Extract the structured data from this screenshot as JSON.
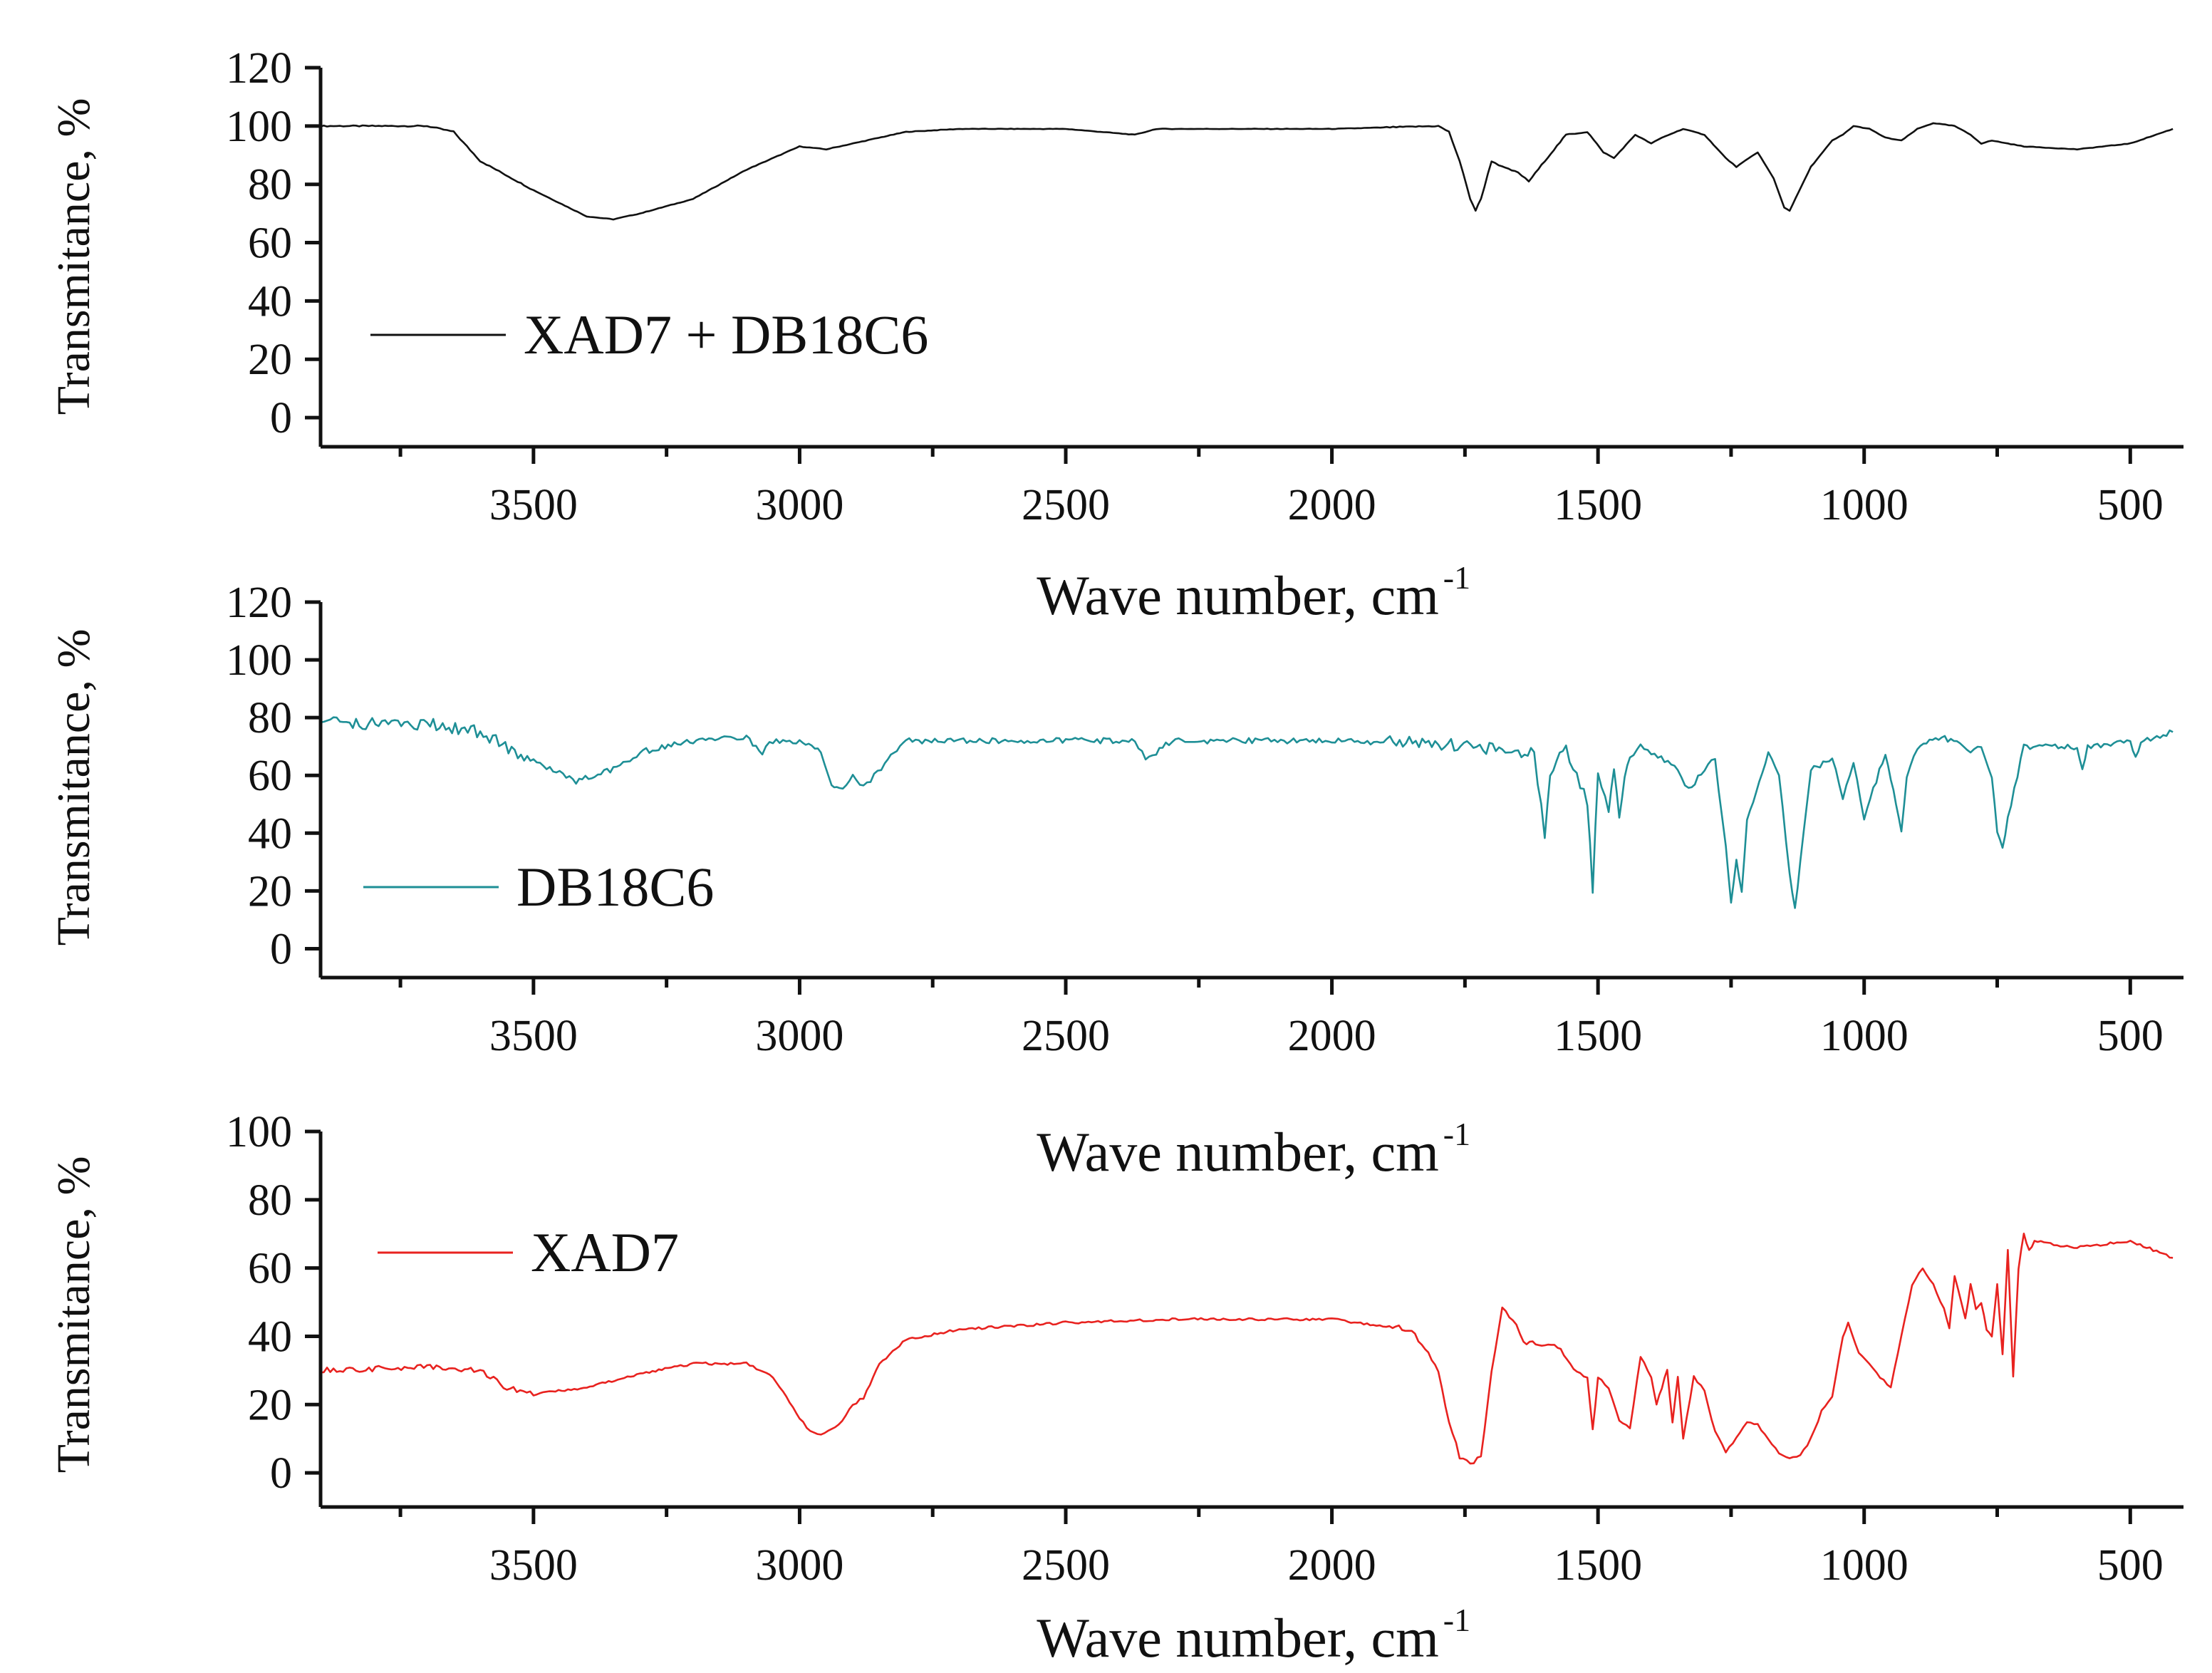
{
  "figure": {
    "x_title": "Wave number, cm",
    "x_title_sup": "-1",
    "y_title": "Transmitance, %"
  },
  "chart_data": [
    {
      "type": "line",
      "name": "XAD7 + DB18C6",
      "legend": "XAD7 + DB18C6",
      "color": "#111111",
      "xlabel": "Wave number, cm-1",
      "ylabel": "Transmitance, %",
      "xlim": [
        3900,
        400
      ],
      "ylim": [
        -10,
        120
      ],
      "xticks": [
        3500,
        3000,
        2500,
        2000,
        1500,
        1000,
        500
      ],
      "yticks": [
        0,
        20,
        40,
        60,
        80,
        100,
        120
      ],
      "noise": 0.2,
      "x": [
        3900,
        3700,
        3650,
        3600,
        3500,
        3400,
        3350,
        3300,
        3200,
        3100,
        3000,
        2950,
        2900,
        2800,
        2700,
        2500,
        2370,
        2350,
        2330,
        2200,
        2000,
        1800,
        1780,
        1760,
        1740,
        1730,
        1720,
        1700,
        1680,
        1650,
        1630,
        1600,
        1560,
        1520,
        1490,
        1470,
        1430,
        1400,
        1380,
        1340,
        1300,
        1260,
        1240,
        1200,
        1170,
        1150,
        1140,
        1100,
        1060,
        1040,
        1020,
        990,
        960,
        930,
        900,
        870,
        830,
        800,
        780,
        760,
        700,
        600,
        500,
        420
      ],
      "y": [
        100,
        100,
        98,
        88,
        78,
        69,
        68,
        70,
        75,
        85,
        93,
        92,
        94,
        98,
        99,
        99,
        97,
        98,
        99,
        99,
        99,
        100,
        98,
        88,
        75,
        71,
        75,
        88,
        86,
        84,
        81,
        88,
        97,
        98,
        91,
        89,
        97,
        94,
        96,
        99,
        97,
        89,
        86,
        91,
        82,
        72,
        71,
        86,
        95,
        97,
        100,
        99,
        96,
        95,
        99,
        101,
        100,
        97,
        94,
        95,
        93,
        92,
        94,
        99
      ]
    },
    {
      "type": "line",
      "name": "DB18C6",
      "legend": "DB18C6",
      "color": "#1e8f96",
      "xlabel": "Wave number, cm-1",
      "ylabel": "Transmitance, %",
      "xlim": [
        3900,
        400
      ],
      "ylim": [
        -10,
        120
      ],
      "xticks": [
        3500,
        3000,
        2500,
        2000,
        1500,
        1000,
        500
      ],
      "yticks": [
        0,
        20,
        40,
        60,
        80,
        100,
        120
      ],
      "noise": 2.2,
      "x": [
        3900,
        3700,
        3600,
        3500,
        3420,
        3350,
        3300,
        3200,
        3100,
        3070,
        3050,
        3000,
        2960,
        2940,
        2925,
        2900,
        2880,
        2860,
        2840,
        2800,
        2500,
        2370,
        2350,
        2330,
        2300,
        2000,
        1800,
        1620,
        1600,
        1590,
        1560,
        1540,
        1520,
        1510,
        1500,
        1480,
        1470,
        1460,
        1450,
        1440,
        1420,
        1400,
        1350,
        1330,
        1300,
        1280,
        1260,
        1250,
        1240,
        1230,
        1220,
        1180,
        1160,
        1140,
        1130,
        1120,
        1100,
        1060,
        1040,
        1020,
        1000,
        960,
        945,
        930,
        920,
        900,
        860,
        820,
        800,
        780,
        760,
        750,
        740,
        730,
        700,
        600,
        590,
        580,
        500,
        490,
        480,
        420
      ],
      "y": [
        78,
        78,
        75,
        65,
        58,
        62,
        68,
        72,
        73,
        68,
        72,
        72,
        68,
        57,
        55,
        60,
        56,
        60,
        64,
        72,
        72,
        72,
        66,
        68,
        72,
        72,
        71,
        68,
        40,
        62,
        70,
        60,
        50,
        20,
        60,
        48,
        62,
        45,
        60,
        66,
        70,
        68,
        62,
        55,
        62,
        66,
        35,
        15,
        30,
        20,
        45,
        68,
        60,
        25,
        14,
        30,
        62,
        66,
        52,
        64,
        45,
        68,
        55,
        40,
        60,
        70,
        73,
        72,
        68,
        70,
        60,
        40,
        35,
        45,
        70,
        70,
        62,
        70,
        72,
        66,
        72,
        75
      ]
    },
    {
      "type": "line",
      "name": "XAD7",
      "legend": "XAD7",
      "color": "#e8221f",
      "xlabel": "Wave number, cm-1",
      "ylabel": "Transmitance, %",
      "xlim": [
        3900,
        400
      ],
      "ylim": [
        -10,
        100
      ],
      "xticks": [
        3500,
        3000,
        2500,
        2000,
        1500,
        1000,
        500
      ],
      "yticks": [
        0,
        20,
        40,
        60,
        80,
        100
      ],
      "noise": 0.8,
      "x": [
        3900,
        3700,
        3600,
        3550,
        3500,
        3400,
        3300,
        3200,
        3100,
        3050,
        3000,
        2980,
        2960,
        2940,
        2920,
        2900,
        2880,
        2850,
        2800,
        2700,
        2500,
        2300,
        2000,
        1850,
        1800,
        1780,
        1760,
        1740,
        1720,
        1700,
        1680,
        1660,
        1640,
        1600,
        1570,
        1540,
        1520,
        1510,
        1500,
        1480,
        1460,
        1440,
        1420,
        1400,
        1390,
        1380,
        1370,
        1360,
        1350,
        1340,
        1320,
        1300,
        1280,
        1260,
        1240,
        1220,
        1200,
        1180,
        1160,
        1140,
        1120,
        1100,
        1080,
        1060,
        1040,
        1030,
        1010,
        990,
        970,
        950,
        930,
        910,
        890,
        870,
        850,
        840,
        830,
        810,
        800,
        790,
        780,
        770,
        760,
        750,
        740,
        730,
        720,
        710,
        700,
        690,
        680,
        650,
        600,
        550,
        500,
        420
      ],
      "y": [
        30,
        31,
        30,
        25,
        23,
        25,
        29,
        32,
        32,
        28,
        16,
        12,
        11,
        13,
        15,
        20,
        22,
        32,
        39,
        42,
        44,
        45,
        45,
        42,
        30,
        15,
        5,
        2,
        5,
        30,
        48,
        45,
        38,
        38,
        36,
        30,
        28,
        12,
        28,
        25,
        15,
        13,
        34,
        28,
        20,
        25,
        30,
        15,
        28,
        10,
        28,
        24,
        12,
        6,
        10,
        15,
        14,
        10,
        6,
        4,
        5,
        10,
        18,
        22,
        40,
        44,
        35,
        32,
        28,
        25,
        40,
        55,
        60,
        55,
        48,
        42,
        58,
        45,
        55,
        48,
        50,
        42,
        40,
        55,
        35,
        65,
        28,
        60,
        70,
        65,
        68,
        67,
        66,
        67,
        68,
        63
      ]
    }
  ]
}
